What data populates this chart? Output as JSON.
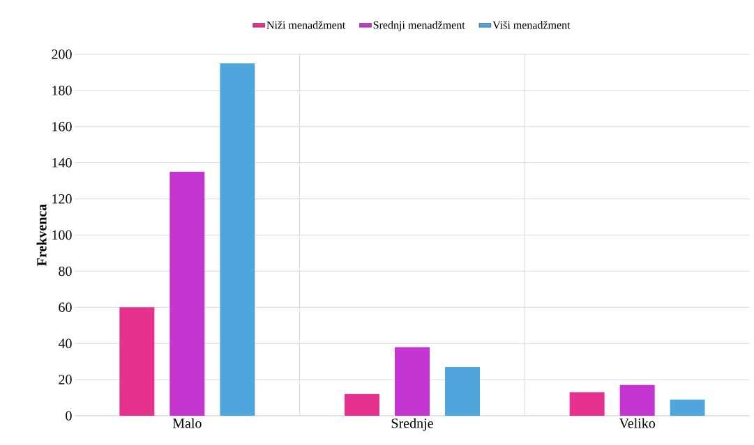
{
  "chart_data": {
    "type": "bar",
    "ylabel": "Frekvenca",
    "categories": [
      "Malo",
      "Srednje",
      "Veliko"
    ],
    "series": [
      {
        "name": "Niži menadžment",
        "color": "#e6318f",
        "values": [
          60,
          12,
          13
        ]
      },
      {
        "name": "Srednji menadžment",
        "color": "#c535cf",
        "values": [
          135,
          38,
          17
        ]
      },
      {
        "name": "Viši menadžment",
        "color": "#4ea6dc",
        "values": [
          195,
          27,
          9
        ]
      }
    ],
    "ylim": [
      0,
      200
    ],
    "yticks": [
      0,
      20,
      40,
      60,
      80,
      100,
      120,
      140,
      160,
      180,
      200
    ],
    "grid": true,
    "legend": "top"
  }
}
